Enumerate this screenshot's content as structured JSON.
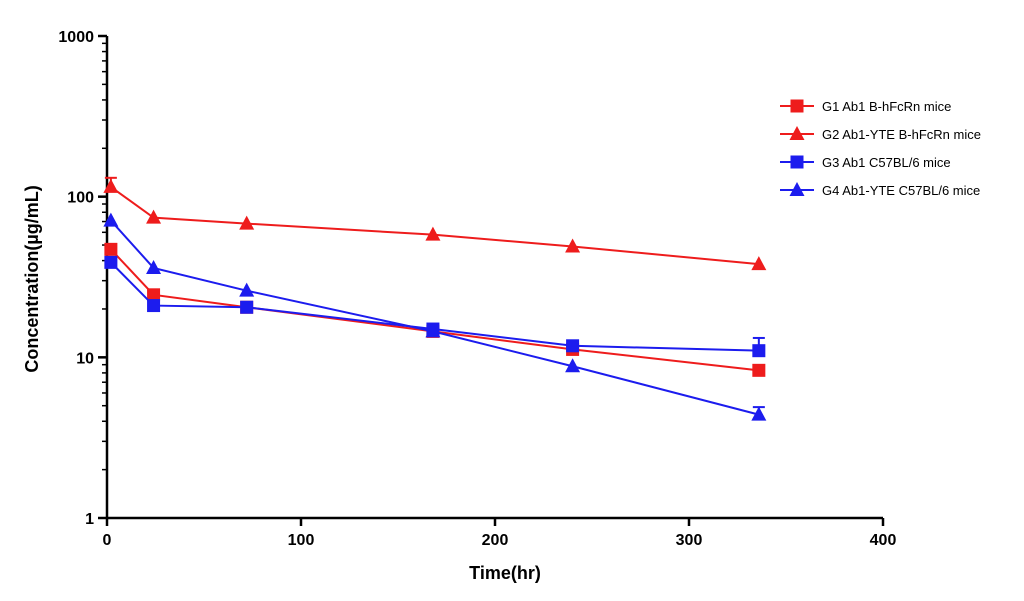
{
  "chart_data": {
    "type": "line",
    "title": "",
    "xlabel": "Time(hr)",
    "ylabel": "Concentration(µg/mL)",
    "x_scale": "linear",
    "y_scale": "log",
    "xlim": [
      0,
      400
    ],
    "ylim": [
      1,
      1000
    ],
    "x_ticks": [
      "0",
      "100",
      "200",
      "300",
      "400"
    ],
    "y_ticks": [
      "1",
      "10",
      "100",
      "1000"
    ],
    "grid": false,
    "legend_position": "right",
    "series": [
      {
        "name": "G1 Ab1 B-hFcRn mice",
        "color": "#ee1c1c",
        "marker": "square",
        "x": [
          2,
          24,
          72,
          168,
          240,
          336
        ],
        "y": [
          47,
          24.5,
          20.5,
          14.5,
          11.2,
          8.3
        ]
      },
      {
        "name": "G2 Ab1-YTE B-hFcRn mice",
        "color": "#ee1c1c",
        "marker": "triangle",
        "x": [
          2,
          24,
          72,
          168,
          240,
          336
        ],
        "y": [
          115,
          74,
          68,
          58,
          49,
          38
        ],
        "error": [
          16,
          0,
          0,
          0,
          0,
          0
        ]
      },
      {
        "name": "G3 Ab1 C57BL/6 mice",
        "color": "#1c1cee",
        "marker": "square",
        "x": [
          2,
          24,
          72,
          168,
          240,
          336
        ],
        "y": [
          39,
          21,
          20.5,
          15,
          11.8,
          11
        ],
        "error": [
          0,
          0,
          0,
          0,
          0,
          2.2
        ]
      },
      {
        "name": "G4 Ab1-YTE C57BL/6 mice",
        "color": "#1c1cee",
        "marker": "triangle",
        "x": [
          2,
          24,
          72,
          168,
          240,
          336
        ],
        "y": [
          71,
          36,
          26,
          14.5,
          8.8,
          4.4
        ],
        "error": [
          0,
          0,
          0,
          0,
          0,
          0.5
        ]
      }
    ]
  }
}
